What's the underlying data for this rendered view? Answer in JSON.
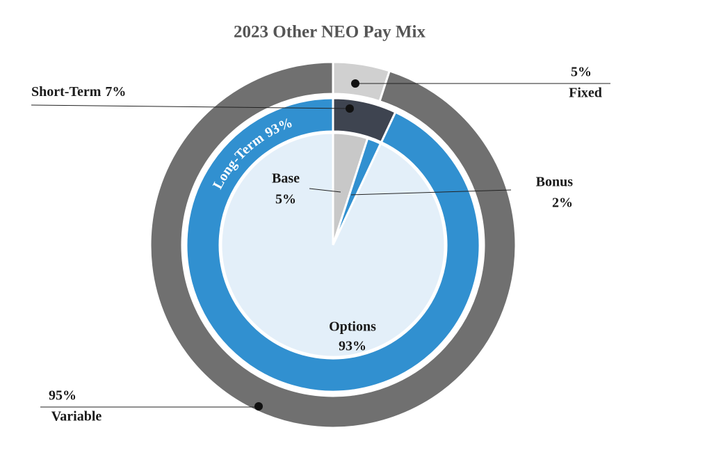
{
  "chart_data": {
    "type": "pie",
    "title": "2023 Other NEO Pay Mix",
    "rings": [
      {
        "categories": [
          "Fixed",
          "Variable"
        ],
        "values": [
          5,
          95
        ],
        "value_labels": [
          "5%",
          "95%"
        ],
        "colors": [
          "#d0d0d0",
          "#707070"
        ]
      },
      {
        "categories": [
          "Short-Term",
          "Long-Term"
        ],
        "values": [
          7,
          93
        ],
        "value_labels": [
          "7%",
          "93%"
        ],
        "colors": [
          "#3e4450",
          "#3190d0"
        ]
      },
      {
        "categories": [
          "Base",
          "Bonus",
          "Options"
        ],
        "values": [
          5,
          2,
          93
        ],
        "value_labels": [
          "5%",
          "2%",
          "93%"
        ],
        "colors": [
          "#c8c8c8",
          "#3190d0",
          "#e3eff9"
        ]
      }
    ]
  }
}
